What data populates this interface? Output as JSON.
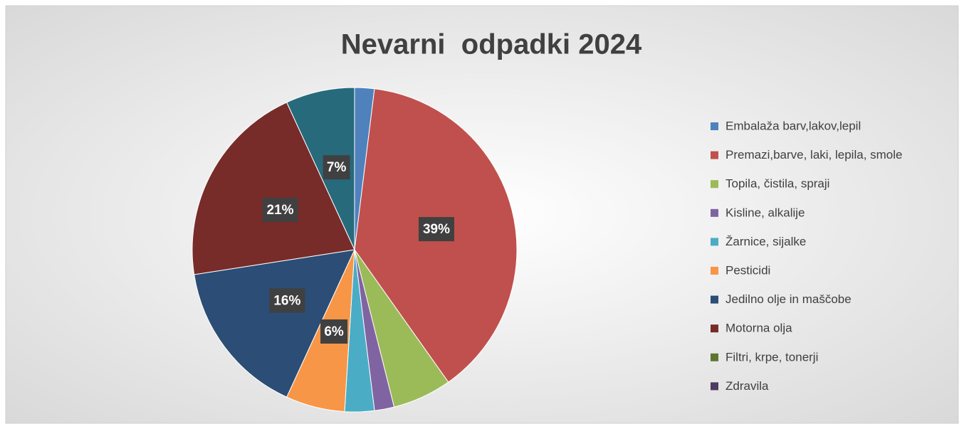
{
  "chart_data": {
    "type": "pie",
    "title": "Nevarni  odpadki 2024",
    "categories": [
      "Embalaža barv,lakov,lepil",
      "Premazi,barve, laki, lepila, smole",
      "Topila, čistila, spraji",
      "Kisline, alkalije",
      "Žarnice, sijalke",
      "Pesticidi",
      "Jedilno olje in maščobe",
      "Motorna olja",
      "Filtri, krpe, tonerji",
      "Zdravila",
      null
    ],
    "values": [
      2,
      39,
      6,
      2,
      3,
      6,
      16,
      21,
      0,
      0,
      7
    ],
    "value_labels": [
      null,
      "39%",
      null,
      null,
      null,
      "6%",
      "16%",
      "21%",
      null,
      null,
      "7%"
    ],
    "colors": [
      "#4f81bd",
      "#c0504d",
      "#9bbb59",
      "#8064a2",
      "#4bacc6",
      "#f79646",
      "#2c4d75",
      "#772c2a",
      "#5f7530",
      "#4d3b62",
      "#276a7c"
    ],
    "legend": "right"
  }
}
